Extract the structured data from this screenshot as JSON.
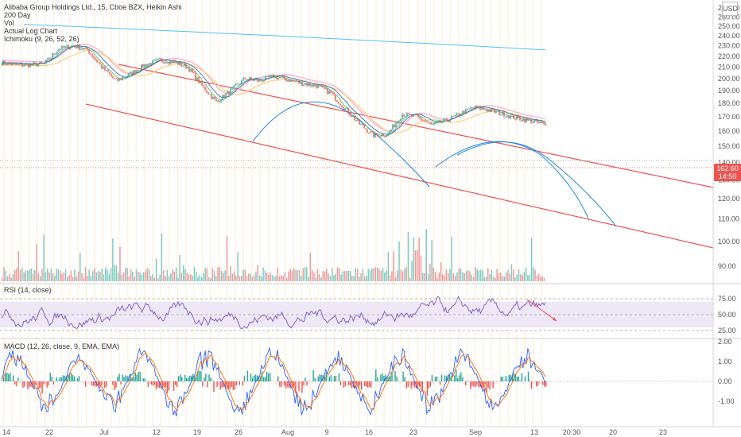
{
  "legend": {
    "title": "Alibaba Group Holdings Ltd., 15, Cboe BZX, Heikin Ashi",
    "lines": [
      "200 Day",
      "Vol",
      "Actual Log Chart",
      "Ichimoku (9, 26, 52, 26)"
    ]
  },
  "currency_button": "USD",
  "current_price": {
    "value": "162.60",
    "countdown": "14:50"
  },
  "colors": {
    "up": "#26a69a",
    "down": "#ef5350",
    "trendline": "#ef5350",
    "ma200": "#4fc3f7",
    "curve": "#1e88e5",
    "rsi": "#7e57c2",
    "macd": "#2962ff",
    "signal": "#ff6d00"
  },
  "chart_data": [
    {
      "type": "line",
      "pane": "price",
      "y_scale": "log",
      "ylim": [
        85,
        272
      ],
      "y_ticks": [
        270,
        260,
        250,
        240,
        230,
        220,
        210,
        200,
        190,
        180,
        170,
        160,
        150,
        140,
        130,
        120,
        110,
        100,
        90
      ],
      "x_ticks": [
        "14",
        "22",
        "Jul",
        "12",
        "19",
        "26",
        "Aug",
        "9",
        "16",
        "23",
        "Sep",
        "13",
        "20:30",
        "20",
        "23"
      ],
      "series": [
        {
          "values": [
            214,
            212,
            212,
            213,
            227,
            230,
            226,
            210,
            198,
            204,
            212,
            216,
            215,
            210,
            194,
            181,
            190,
            200,
            198,
            202,
            199,
            196,
            194,
            188,
            176,
            165,
            157,
            158,
            172,
            170,
            164,
            167,
            172,
            177,
            175,
            172,
            169,
            167,
            164
          ]
        },
        {
          "values": [
            252,
            240,
            226
          ]
        },
        {
          "values": [
            152,
            159,
            167
          ]
        }
      ]
    },
    {
      "type": "bar",
      "pane": "volume"
    },
    {
      "type": "line",
      "pane": "rsi",
      "title": "RSI (14, close)",
      "ylim": [
        15,
        85
      ],
      "y_ticks": [
        75.0,
        50.0,
        25.0
      ],
      "band": [
        30,
        70
      ]
    },
    {
      "type": "line",
      "pane": "macd",
      "title": "MACD (12, 26, close, 9, EMA, EMA)",
      "ylim": [
        -2.0,
        2.0
      ],
      "y_ticks": [
        2.0,
        1.0,
        0.0,
        -1.0
      ]
    }
  ]
}
